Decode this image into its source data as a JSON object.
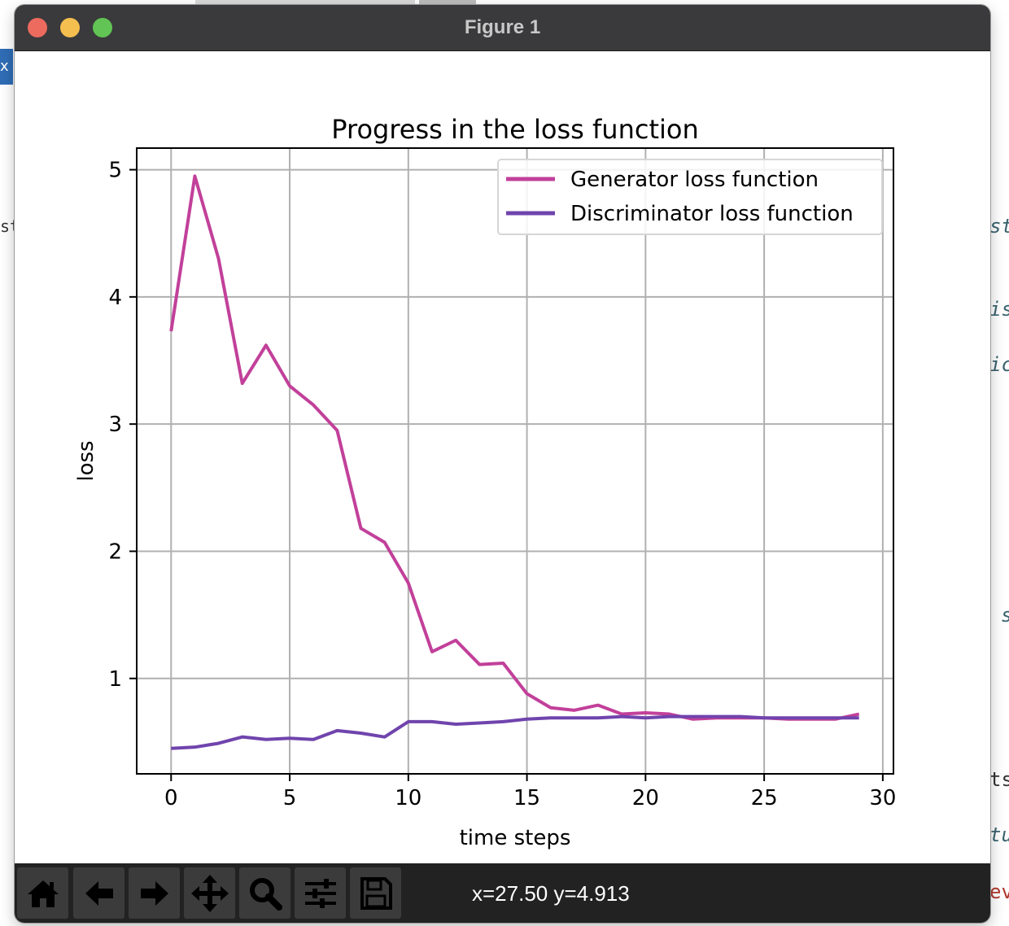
{
  "window": {
    "title": "Figure 1"
  },
  "toolbar": {
    "buttons": [
      {
        "name": "home-icon",
        "label": "home"
      },
      {
        "name": "back-arrow-icon",
        "label": "back"
      },
      {
        "name": "forward-arrow-icon",
        "label": "forward"
      },
      {
        "name": "pan-icon",
        "label": "pan"
      },
      {
        "name": "zoom-icon",
        "label": "zoom"
      },
      {
        "name": "configure-subplots-icon",
        "label": "subplots"
      },
      {
        "name": "save-icon",
        "label": "save"
      }
    ],
    "coordinates": "x=27.50 y=4.913"
  },
  "background_fragments": [
    "x",
    "st.",
    "st",
    "is",
    "ic",
    "s",
    "ts",
    "tu",
    "ev"
  ],
  "chart_data": {
    "type": "line",
    "title": "Progress in the loss function",
    "xlabel": "time steps",
    "ylabel": "loss",
    "xlim": [
      -1.45,
      30.45
    ],
    "ylim": [
      0.25,
      5.17
    ],
    "xticks": [
      "0",
      "5",
      "10",
      "15",
      "20",
      "25",
      "30"
    ],
    "yticks": [
      "1",
      "2",
      "3",
      "4",
      "5"
    ],
    "grid": true,
    "legend_position": "upper right",
    "x": [
      0,
      1,
      2,
      3,
      4,
      5,
      6,
      7,
      8,
      9,
      10,
      11,
      12,
      13,
      14,
      15,
      16,
      17,
      18,
      19,
      20,
      21,
      22,
      23,
      24,
      25,
      26,
      27,
      28,
      29
    ],
    "series": [
      {
        "name": "Generator loss function",
        "color": "#c2409a",
        "values": [
          3.73,
          4.95,
          4.3,
          3.32,
          3.62,
          3.3,
          3.15,
          2.95,
          2.18,
          2.07,
          1.75,
          1.21,
          1.3,
          1.11,
          1.12,
          0.88,
          0.77,
          0.75,
          0.79,
          0.72,
          0.73,
          0.72,
          0.68,
          0.69,
          0.69,
          0.69,
          0.68,
          0.68,
          0.68,
          0.72
        ]
      },
      {
        "name": "Discriminator loss function",
        "color": "#7044ad",
        "values": [
          0.45,
          0.46,
          0.49,
          0.54,
          0.52,
          0.53,
          0.52,
          0.59,
          0.57,
          0.54,
          0.66,
          0.66,
          0.64,
          0.65,
          0.66,
          0.68,
          0.69,
          0.69,
          0.69,
          0.7,
          0.69,
          0.7,
          0.7,
          0.7,
          0.7,
          0.69,
          0.69,
          0.69,
          0.69,
          0.69
        ]
      }
    ]
  }
}
